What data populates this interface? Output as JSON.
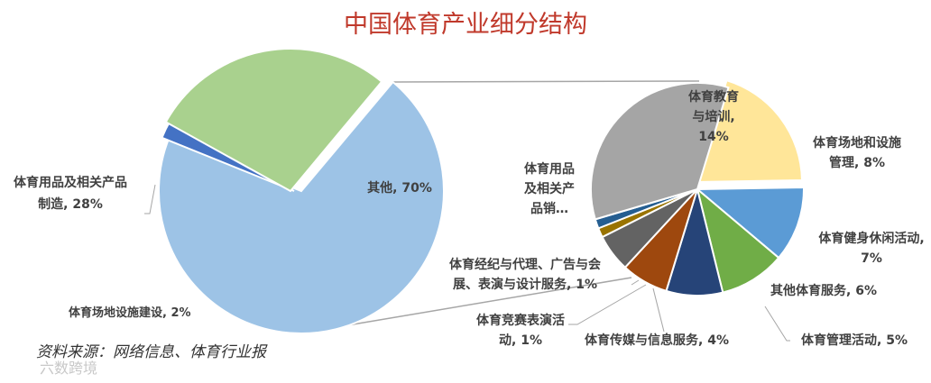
{
  "chart_data": [
    {
      "type": "pie",
      "title": "中国体育产业细分结构",
      "series": [
        {
          "label": "其他, 70%",
          "value": 70,
          "color": "#9dc3e6"
        },
        {
          "label": "体育场地设施建设, 2%",
          "value": 2,
          "color": "#4472c4"
        },
        {
          "label_lines": [
            "体育用品及相关产品",
            "制造, 28%"
          ],
          "value": 28,
          "color": "#a9d18e"
        }
      ]
    },
    {
      "type": "pie",
      "series": [
        {
          "label_lines": [
            "体育教育",
            "与培训,",
            "14%"
          ],
          "value": 14,
          "color": "#ffe699"
        },
        {
          "label_lines": [
            "体育场地和设施",
            "管理, 8%"
          ],
          "value": 8,
          "color": "#5b9bd5"
        },
        {
          "label_lines": [
            "体育健身休闲活动,",
            "7%"
          ],
          "value": 7,
          "color": "#70ad47"
        },
        {
          "label_lines": [
            "其他体育服务, 6%"
          ],
          "value": 6,
          "color": "#264478"
        },
        {
          "label_lines": [
            "体育管理活动, 5%"
          ],
          "value": 5,
          "color": "#9e480e"
        },
        {
          "label_lines": [
            "体育传媒与信息服务, 4%"
          ],
          "value": 4,
          "color": "#636363"
        },
        {
          "label_lines": [
            "体育竞赛表演活",
            "动, 1%"
          ],
          "value": 1,
          "color": "#997300"
        },
        {
          "label_lines": [
            "体育经纪与代理、广告与会",
            "展、表演与设计服务, 1%"
          ],
          "value": 1,
          "color": "#255e91"
        },
        {
          "label_lines": [
            "体育用品",
            "及相关产",
            "品销…"
          ],
          "value": 24,
          "color": "#a5a5a5"
        }
      ]
    }
  ],
  "source_note": "资料来源：网络信息、体育行业报",
  "watermark": "六数跨境",
  "colors": {
    "title": "#c0392b",
    "connector": "#a6a6a6"
  }
}
